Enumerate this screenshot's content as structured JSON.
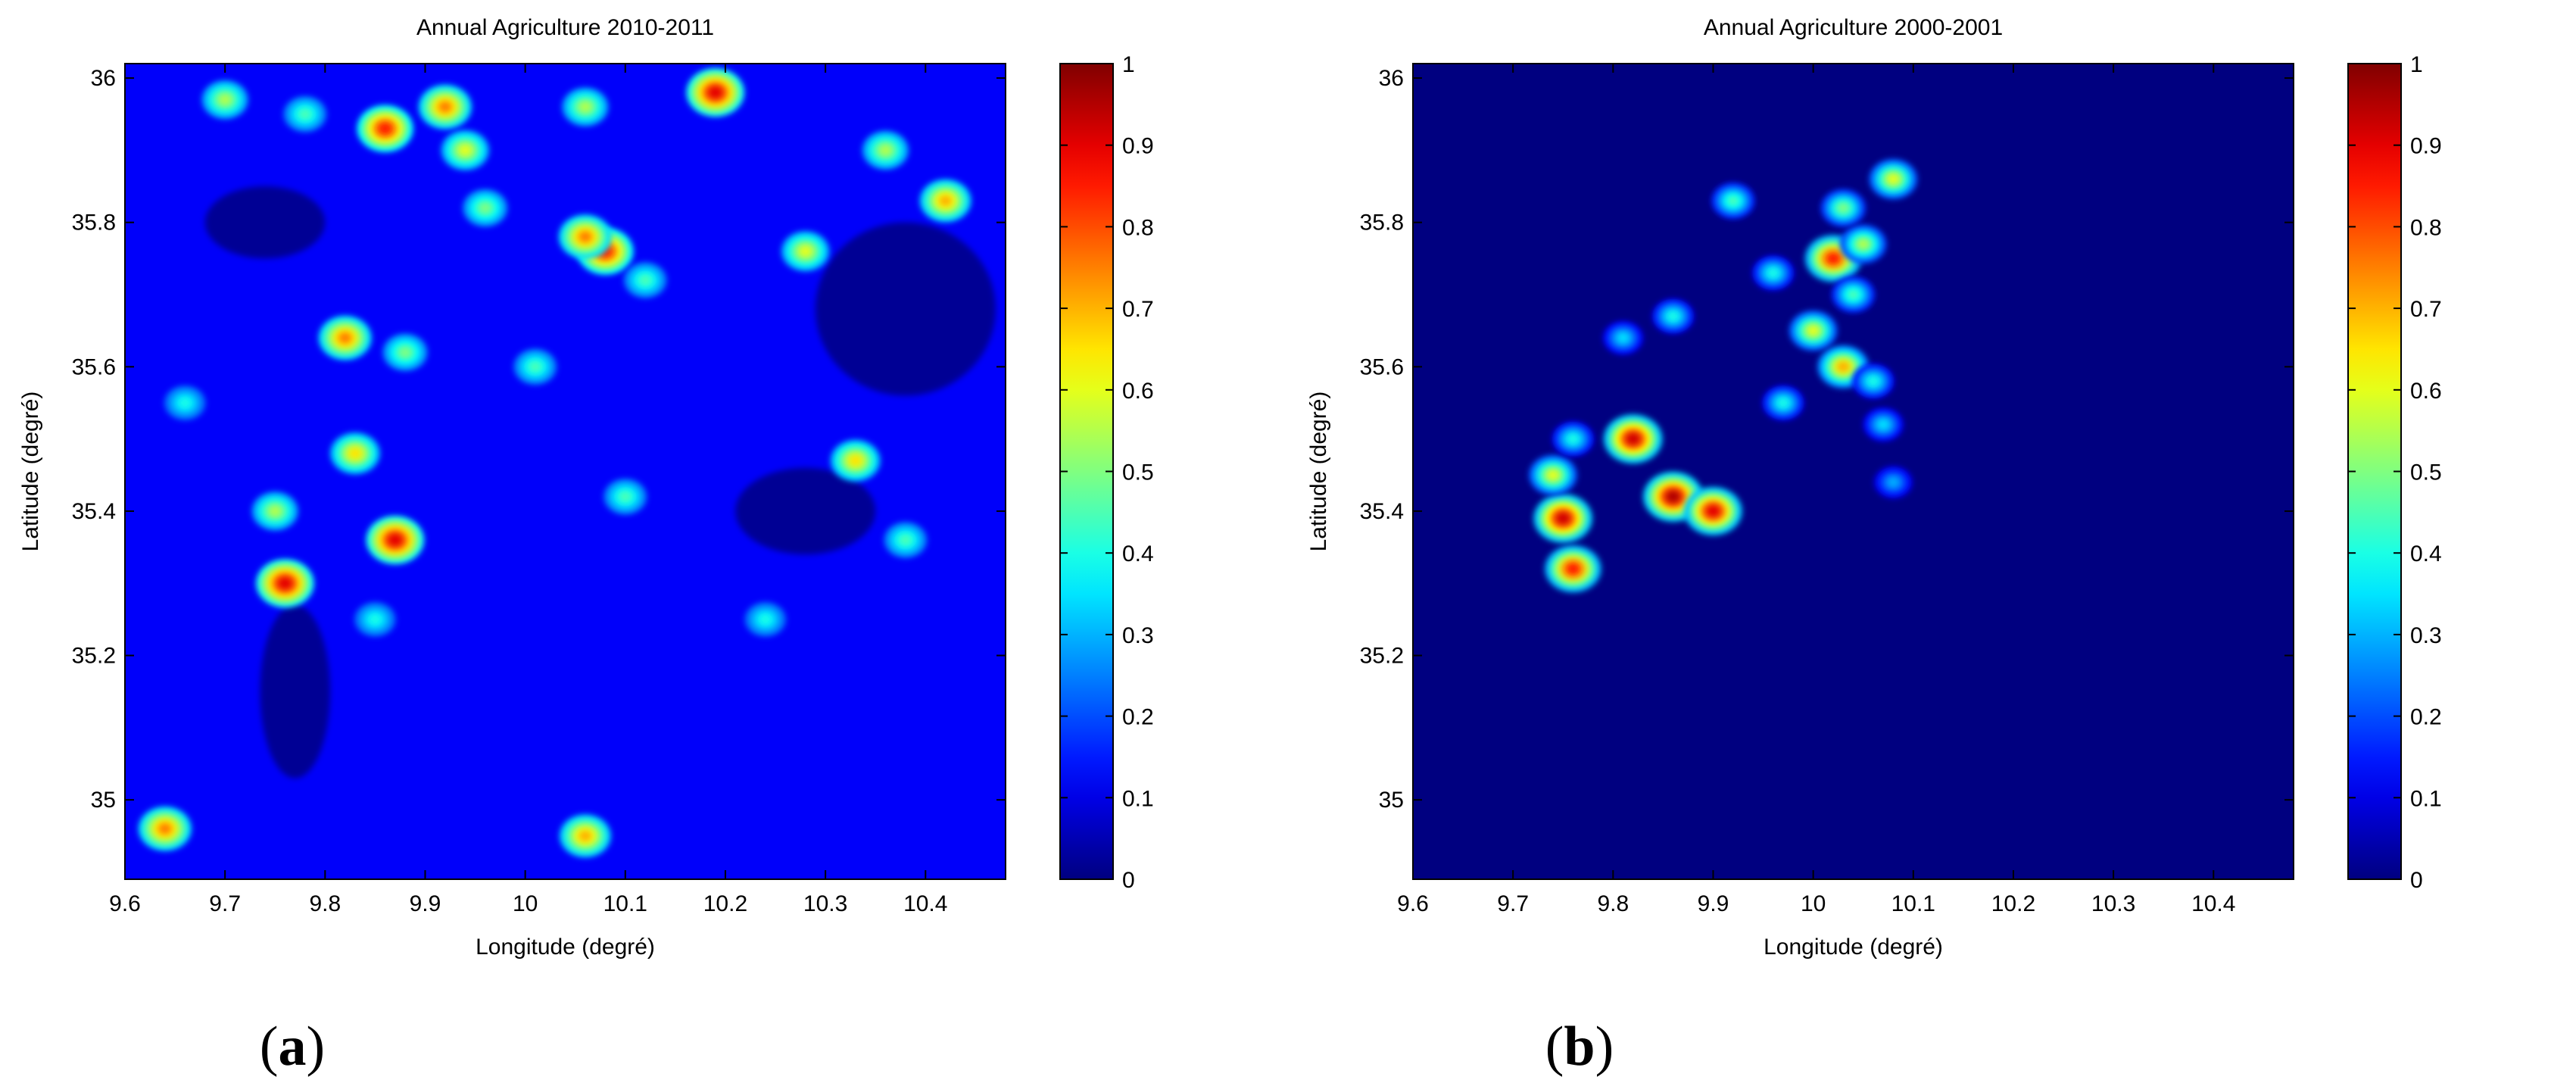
{
  "chart_data": [
    {
      "type": "heatmap",
      "panel": "a",
      "title": "Annual Agriculture 2010-2011",
      "xlabel": "Longitude (degré)",
      "ylabel": "Latitude (degré)",
      "xlim": [
        9.6,
        10.48
      ],
      "ylim": [
        34.89,
        36.02
      ],
      "xticks": [
        9.6,
        9.7,
        9.8,
        9.9,
        10,
        10.1,
        10.2,
        10.3,
        10.4
      ],
      "xtick_labels": [
        "9.6",
        "9.7",
        "9.8",
        "9.9",
        "10",
        "10.1",
        "10.2",
        "10.3",
        "10.4"
      ],
      "yticks": [
        35,
        35.2,
        35.4,
        35.6,
        35.8,
        36
      ],
      "ytick_labels": [
        "35",
        "35.2",
        "35.4",
        "35.6",
        "35.8",
        "36"
      ],
      "colorbar": {
        "min": 0,
        "max": 1,
        "ticks": [
          0,
          0.1,
          0.2,
          0.3,
          0.4,
          0.5,
          0.6,
          0.7,
          0.8,
          0.9,
          1
        ],
        "tick_labels": [
          "0",
          "0.1",
          "0.2",
          "0.3",
          "0.4",
          "0.5",
          "0.6",
          "0.7",
          "0.8",
          "0.9",
          "1"
        ],
        "colormap": "jet"
      },
      "background_value": 0.12,
      "hotspots": [
        {
          "lon": 9.7,
          "lat": 35.97,
          "value": 0.55
        },
        {
          "lon": 9.78,
          "lat": 35.95,
          "value": 0.45
        },
        {
          "lon": 9.86,
          "lat": 35.93,
          "value": 0.85
        },
        {
          "lon": 9.92,
          "lat": 35.96,
          "value": 0.75
        },
        {
          "lon": 9.94,
          "lat": 35.9,
          "value": 0.6
        },
        {
          "lon": 10.06,
          "lat": 35.96,
          "value": 0.55
        },
        {
          "lon": 10.19,
          "lat": 35.98,
          "value": 0.9
        },
        {
          "lon": 10.36,
          "lat": 35.9,
          "value": 0.55
        },
        {
          "lon": 10.42,
          "lat": 35.83,
          "value": 0.7
        },
        {
          "lon": 10.08,
          "lat": 35.76,
          "value": 0.85
        },
        {
          "lon": 10.06,
          "lat": 35.78,
          "value": 0.75
        },
        {
          "lon": 9.96,
          "lat": 35.82,
          "value": 0.5
        },
        {
          "lon": 10.28,
          "lat": 35.76,
          "value": 0.6
        },
        {
          "lon": 9.82,
          "lat": 35.64,
          "value": 0.75
        },
        {
          "lon": 9.88,
          "lat": 35.62,
          "value": 0.5
        },
        {
          "lon": 10.01,
          "lat": 35.6,
          "value": 0.45
        },
        {
          "lon": 10.12,
          "lat": 35.72,
          "value": 0.45
        },
        {
          "lon": 9.83,
          "lat": 35.48,
          "value": 0.65
        },
        {
          "lon": 9.87,
          "lat": 35.36,
          "value": 0.9
        },
        {
          "lon": 9.76,
          "lat": 35.3,
          "value": 0.9
        },
        {
          "lon": 9.75,
          "lat": 35.4,
          "value": 0.55
        },
        {
          "lon": 10.33,
          "lat": 35.47,
          "value": 0.65
        },
        {
          "lon": 10.1,
          "lat": 35.42,
          "value": 0.45
        },
        {
          "lon": 9.85,
          "lat": 35.25,
          "value": 0.4
        },
        {
          "lon": 10.24,
          "lat": 35.25,
          "value": 0.4
        },
        {
          "lon": 10.38,
          "lat": 35.36,
          "value": 0.45
        },
        {
          "lon": 10.06,
          "lat": 34.95,
          "value": 0.7
        },
        {
          "lon": 9.64,
          "lat": 34.96,
          "value": 0.75
        },
        {
          "lon": 9.66,
          "lat": 35.55,
          "value": 0.4
        }
      ],
      "low_zones": [
        {
          "lon": 9.77,
          "lat": 35.15,
          "rx": 0.035,
          "ry": 0.12
        },
        {
          "lon": 10.28,
          "lat": 35.4,
          "rx": 0.07,
          "ry": 0.06
        },
        {
          "lon": 10.38,
          "lat": 35.68,
          "rx": 0.09,
          "ry": 0.12
        },
        {
          "lon": 9.74,
          "lat": 35.8,
          "rx": 0.06,
          "ry": 0.05
        }
      ]
    },
    {
      "type": "heatmap",
      "panel": "b",
      "title": "Annual Agriculture 2000-2001",
      "xlabel": "Longitude (degré)",
      "ylabel": "Latitude (degré)",
      "xlim": [
        9.6,
        10.48
      ],
      "ylim": [
        34.89,
        36.02
      ],
      "xticks": [
        9.6,
        9.7,
        9.8,
        9.9,
        10,
        10.1,
        10.2,
        10.3,
        10.4
      ],
      "xtick_labels": [
        "9.6",
        "9.7",
        "9.8",
        "9.9",
        "10",
        "10.1",
        "10.2",
        "10.3",
        "10.4"
      ],
      "yticks": [
        35,
        35.2,
        35.4,
        35.6,
        35.8,
        36
      ],
      "ytick_labels": [
        "35",
        "35.2",
        "35.4",
        "35.6",
        "35.8",
        "36"
      ],
      "colorbar": {
        "min": 0,
        "max": 1,
        "ticks": [
          0,
          0.1,
          0.2,
          0.3,
          0.4,
          0.5,
          0.6,
          0.7,
          0.8,
          0.9,
          1
        ],
        "tick_labels": [
          "0",
          "0.1",
          "0.2",
          "0.3",
          "0.4",
          "0.5",
          "0.6",
          "0.7",
          "0.8",
          "0.9",
          "1"
        ],
        "colormap": "jet"
      },
      "background_value": 0.0,
      "hotspots": [
        {
          "lon": 9.82,
          "lat": 35.5,
          "value": 0.92
        },
        {
          "lon": 9.86,
          "lat": 35.42,
          "value": 0.95
        },
        {
          "lon": 9.9,
          "lat": 35.4,
          "value": 0.9
        },
        {
          "lon": 9.75,
          "lat": 35.39,
          "value": 0.92
        },
        {
          "lon": 9.76,
          "lat": 35.32,
          "value": 0.85
        },
        {
          "lon": 9.74,
          "lat": 35.45,
          "value": 0.6
        },
        {
          "lon": 9.76,
          "lat": 35.5,
          "value": 0.4
        },
        {
          "lon": 10.02,
          "lat": 35.75,
          "value": 0.85
        },
        {
          "lon": 10.05,
          "lat": 35.77,
          "value": 0.55
        },
        {
          "lon": 10.08,
          "lat": 35.86,
          "value": 0.6
        },
        {
          "lon": 10.03,
          "lat": 35.82,
          "value": 0.5
        },
        {
          "lon": 9.92,
          "lat": 35.83,
          "value": 0.45
        },
        {
          "lon": 9.96,
          "lat": 35.73,
          "value": 0.4
        },
        {
          "lon": 10.0,
          "lat": 35.65,
          "value": 0.6
        },
        {
          "lon": 10.03,
          "lat": 35.6,
          "value": 0.7
        },
        {
          "lon": 10.06,
          "lat": 35.58,
          "value": 0.4
        },
        {
          "lon": 9.97,
          "lat": 35.55,
          "value": 0.4
        },
        {
          "lon": 9.86,
          "lat": 35.67,
          "value": 0.4
        },
        {
          "lon": 10.04,
          "lat": 35.7,
          "value": 0.45
        },
        {
          "lon": 10.07,
          "lat": 35.52,
          "value": 0.35
        },
        {
          "lon": 10.08,
          "lat": 35.44,
          "value": 0.3
        },
        {
          "lon": 9.81,
          "lat": 35.64,
          "value": 0.35
        }
      ],
      "low_zones": []
    }
  ]
}
